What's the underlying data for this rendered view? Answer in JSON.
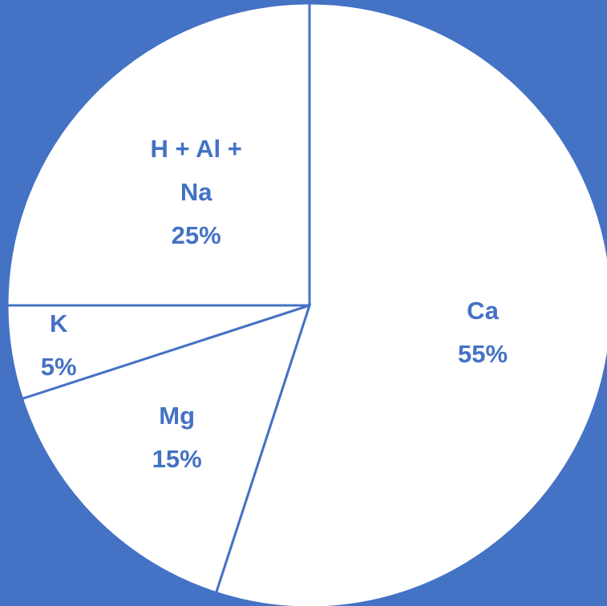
{
  "colors": {
    "background": "#4472C4",
    "slice_fill": "#FFFFFF",
    "slice_stroke": "#4472C4",
    "label_text": "#4472C4"
  },
  "chart_data": {
    "type": "pie",
    "title": "",
    "start_angle_deg": 0,
    "direction": "clockwise",
    "slices": [
      {
        "name": "Ca",
        "value": 55,
        "label_lines": [
          "Ca",
          "55%"
        ]
      },
      {
        "name": "Mg",
        "value": 15,
        "label_lines": [
          "Mg",
          "15%"
        ]
      },
      {
        "name": "K",
        "value": 5,
        "label_lines": [
          "K",
          "5%"
        ]
      },
      {
        "name": "H + Al + Na",
        "value": 25,
        "label_lines": [
          "H + Al +",
          "Na",
          "25%"
        ]
      }
    ],
    "legend": "none",
    "data_labels": "inside"
  }
}
